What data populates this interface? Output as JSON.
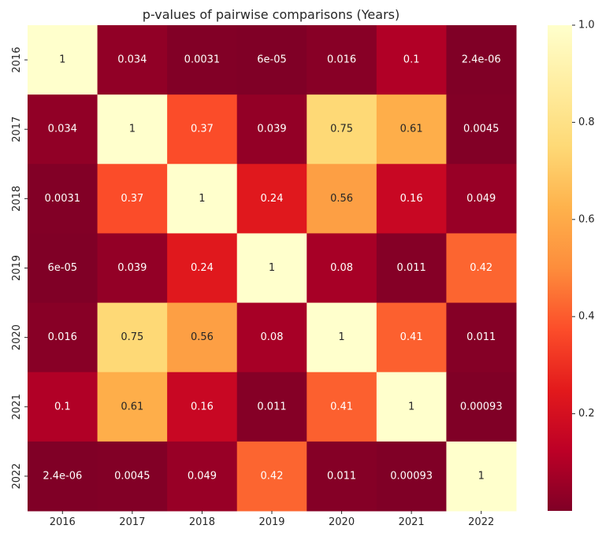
{
  "chart_data": {
    "type": "heatmap",
    "title": "p-values of pairwise comparisons (Years)",
    "xlabel": "",
    "ylabel": "",
    "x_categories": [
      "2016",
      "2017",
      "2018",
      "2019",
      "2020",
      "2021",
      "2022"
    ],
    "y_categories": [
      "2016",
      "2017",
      "2018",
      "2019",
      "2020",
      "2021",
      "2022"
    ],
    "values": [
      [
        1,
        0.034,
        0.0031,
        6e-05,
        0.016,
        0.1,
        2.4e-06
      ],
      [
        0.034,
        1,
        0.37,
        0.039,
        0.75,
        0.61,
        0.0045
      ],
      [
        0.0031,
        0.37,
        1,
        0.24,
        0.56,
        0.16,
        0.049
      ],
      [
        6e-05,
        0.039,
        0.24,
        1,
        0.08,
        0.011,
        0.42
      ],
      [
        0.016,
        0.75,
        0.56,
        0.08,
        1,
        0.41,
        0.011
      ],
      [
        0.1,
        0.61,
        0.16,
        0.011,
        0.41,
        1,
        0.00093
      ],
      [
        2.4e-06,
        0.0045,
        0.049,
        0.42,
        0.011,
        0.00093,
        1
      ]
    ],
    "annotations": [
      [
        "1",
        "0.034",
        "0.0031",
        "6e-05",
        "0.016",
        "0.1",
        "2.4e-06"
      ],
      [
        "0.034",
        "1",
        "0.37",
        "0.039",
        "0.75",
        "0.61",
        "0.0045"
      ],
      [
        "0.0031",
        "0.37",
        "1",
        "0.24",
        "0.56",
        "0.16",
        "0.049"
      ],
      [
        "6e-05",
        "0.039",
        "0.24",
        "1",
        "0.08",
        "0.011",
        "0.42"
      ],
      [
        "0.016",
        "0.75",
        "0.56",
        "0.08",
        "1",
        "0.41",
        "0.011"
      ],
      [
        "0.1",
        "0.61",
        "0.16",
        "0.011",
        "0.41",
        "1",
        "0.00093"
      ],
      [
        "2.4e-06",
        "0.0045",
        "0.049",
        "0.42",
        "0.011",
        "0.00093",
        "1"
      ]
    ],
    "colormap": "YlOrRd_r",
    "color_range": [
      2.4e-06,
      1
    ],
    "colorbar_ticks": [
      "0.2",
      "0.4",
      "0.6",
      "0.8",
      "1.0"
    ],
    "colorbar_tick_values": [
      0.2,
      0.4,
      0.6,
      0.8,
      1.0
    ],
    "colorbar_position": "right",
    "grid": false,
    "colors": {
      "dark_text": "#262626",
      "light_text": "#ffffff",
      "low": "#800026",
      "high": "#ffffcc"
    }
  }
}
